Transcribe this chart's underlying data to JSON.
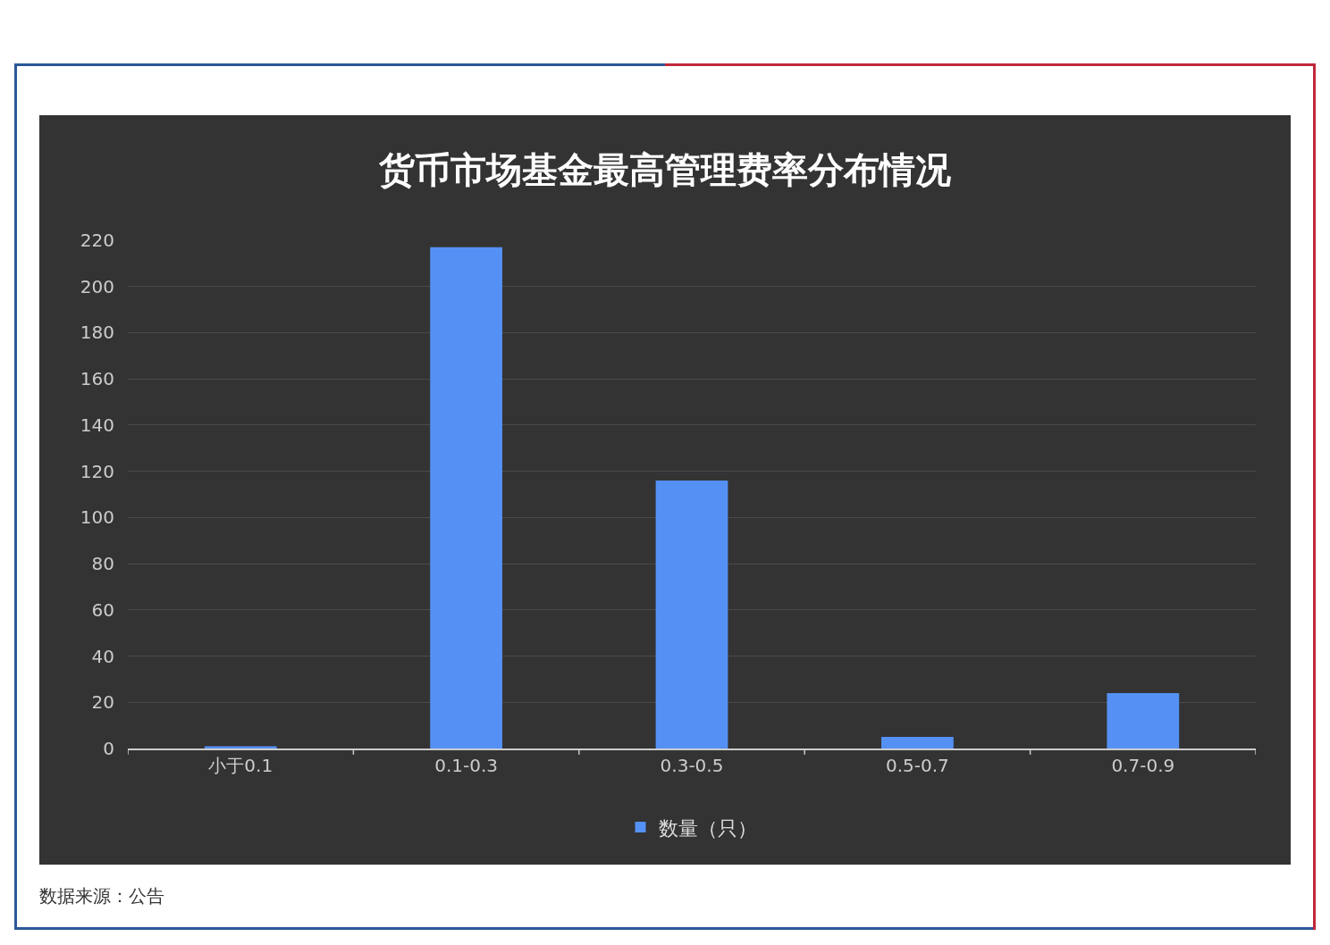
{
  "chart_data": {
    "type": "bar",
    "title": "货币市场基金最高管理费率分布情况",
    "categories": [
      "小于0.1",
      "0.1-0.3",
      "0.3-0.5",
      "0.5-0.7",
      "0.7-0.9"
    ],
    "series": [
      {
        "name": "数量（只）",
        "color": "#5591f4",
        "values": [
          1,
          217,
          116,
          5,
          24
        ]
      }
    ],
    "ylim": [
      0,
      220
    ],
    "yticks": [
      0,
      20,
      40,
      60,
      80,
      100,
      120,
      140,
      160,
      180,
      200,
      220
    ],
    "grid": "y",
    "legend": "bottom",
    "annotations": [
      "数据来源：公告"
    ]
  }
}
